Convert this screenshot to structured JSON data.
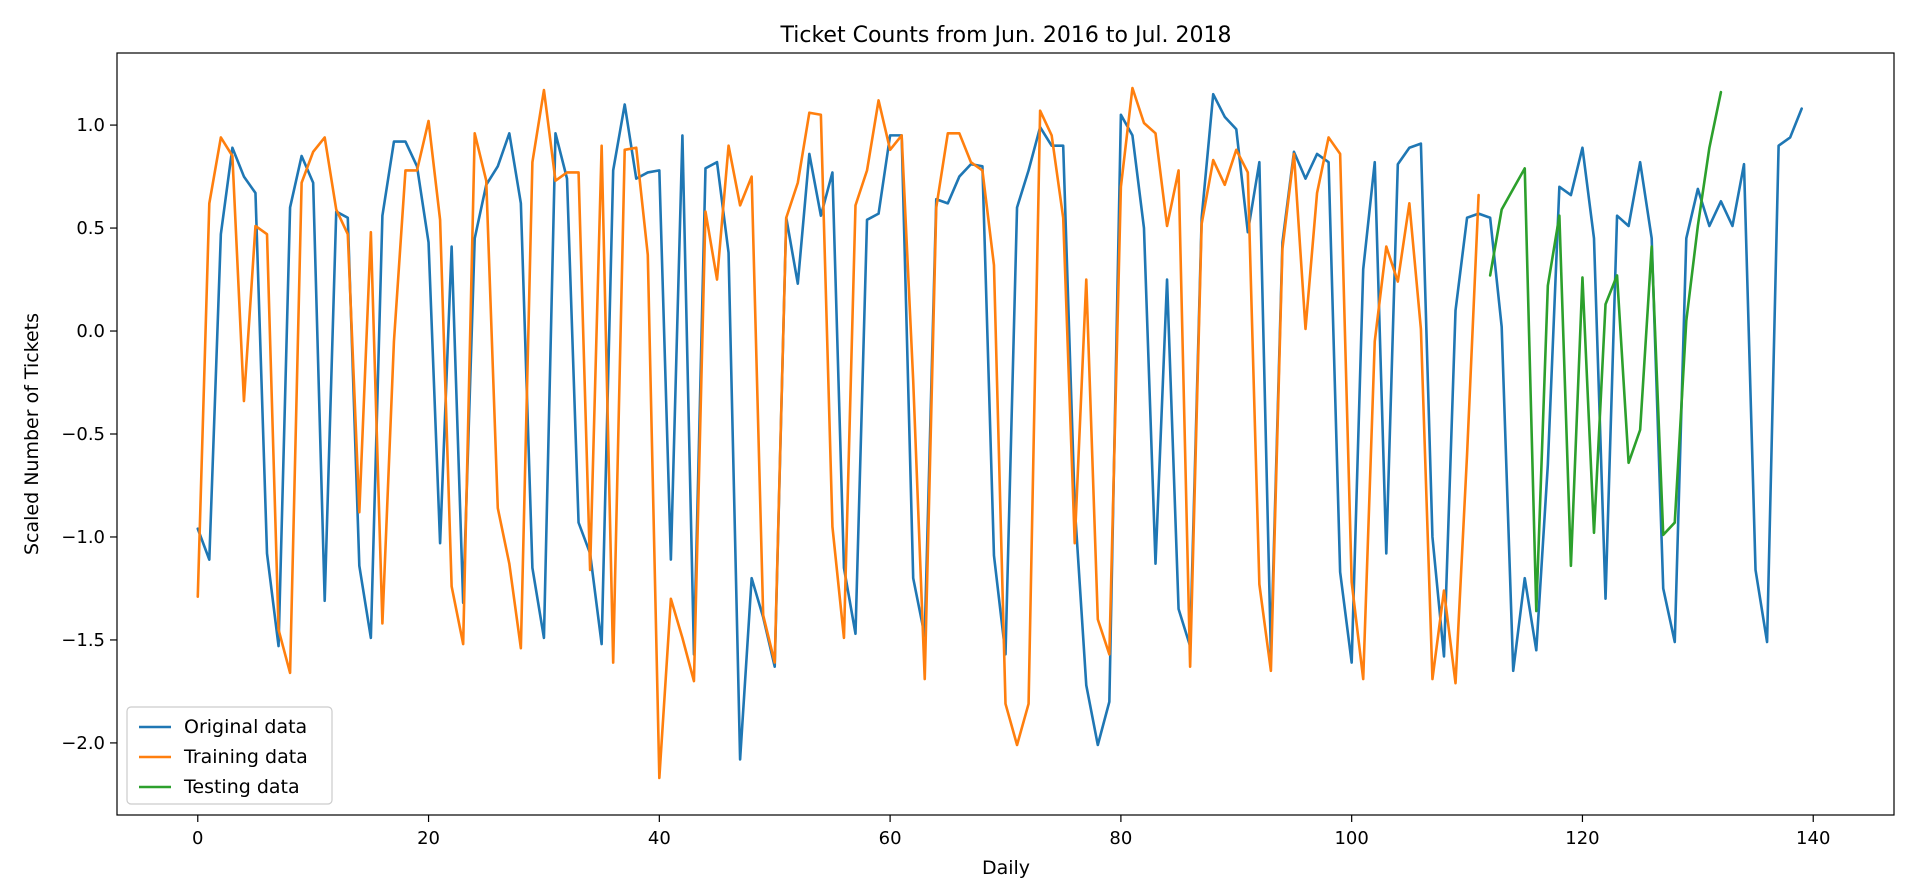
{
  "chart_data": {
    "type": "line",
    "title": "Ticket Counts from Jun. 2016 to Jul. 2018",
    "xlabel": "Daily",
    "ylabel": "Scaled Number of Tickets",
    "xlim": [
      -7,
      147
    ],
    "ylim": [
      -2.35,
      1.35
    ],
    "xticks": [
      0,
      20,
      40,
      60,
      80,
      100,
      120,
      140
    ],
    "yticks": [
      -2.0,
      -1.5,
      -1.0,
      -0.5,
      0.0,
      0.5,
      1.0
    ],
    "ytick_labels": [
      "−2.0",
      "−1.5",
      "−1.0",
      "−0.5",
      "0.0",
      "0.5",
      "1.0"
    ],
    "grid": false,
    "legend_position": "lower-left",
    "series": [
      {
        "name": "Original data",
        "color": "#1f77b4",
        "x_start": 0,
        "values": [
          -0.96,
          -1.11,
          0.47,
          0.89,
          0.75,
          0.67,
          -1.08,
          -1.53,
          0.6,
          0.85,
          0.72,
          -1.31,
          0.58,
          0.55,
          -1.14,
          -1.49,
          0.56,
          0.92,
          0.92,
          0.8,
          0.43,
          -1.03,
          0.41,
          -1.32,
          0.45,
          0.71,
          0.8,
          0.96,
          0.62,
          -1.15,
          -1.49,
          0.96,
          0.74,
          -0.93,
          -1.08,
          -1.52,
          0.78,
          1.1,
          0.74,
          0.77,
          0.78,
          -1.11,
          0.95,
          -1.57,
          0.79,
          0.82,
          0.38,
          -2.08,
          -1.2,
          -1.39,
          -1.63,
          0.55,
          0.23,
          0.86,
          0.56,
          0.77,
          -1.15,
          -1.47,
          0.54,
          0.57,
          0.95,
          0.95,
          -1.2,
          -1.48,
          0.64,
          0.62,
          0.75,
          0.81,
          0.8,
          -1.09,
          -1.57,
          0.6,
          0.78,
          0.99,
          0.9,
          0.9,
          -0.85,
          -1.72,
          -2.01,
          -1.8,
          1.05,
          0.95,
          0.5,
          -1.13,
          0.25,
          -1.35,
          -1.53,
          0.55,
          1.15,
          1.04,
          0.98,
          0.48,
          0.82,
          -1.57,
          0.43,
          0.87,
          0.74,
          0.86,
          0.82,
          -1.17,
          -1.61,
          0.3,
          0.82,
          -1.08,
          0.81,
          0.89,
          0.91,
          -1.0,
          -1.58,
          0.1,
          0.55,
          0.57,
          0.55,
          0.02,
          -1.65,
          -1.2,
          -1.55,
          -0.65,
          0.7,
          0.66,
          0.89,
          0.45,
          -1.3,
          0.56,
          0.51,
          0.82,
          0.45,
          -1.25,
          -1.51,
          0.45,
          0.69,
          0.51,
          0.63,
          0.51,
          0.81,
          -1.16,
          -1.51,
          0.9,
          0.94,
          1.08
        ]
      },
      {
        "name": "Training data",
        "color": "#ff7f0e",
        "x_start": 0,
        "values": [
          -1.29,
          0.62,
          0.94,
          0.85,
          -0.34,
          0.51,
          0.47,
          -1.45,
          -1.66,
          0.72,
          0.87,
          0.94,
          0.59,
          0.47,
          -0.88,
          0.48,
          -1.42,
          -0.05,
          0.78,
          0.78,
          1.02,
          0.54,
          -1.24,
          -1.52,
          0.96,
          0.73,
          -0.86,
          -1.13,
          -1.54,
          0.82,
          1.17,
          0.73,
          0.77,
          0.77,
          -1.16,
          0.9,
          -1.61,
          0.88,
          0.89,
          0.37,
          -2.17,
          -1.3,
          -1.49,
          -1.7,
          0.58,
          0.25,
          0.9,
          0.61,
          0.75,
          -1.38,
          -1.61,
          0.55,
          0.72,
          1.06,
          1.05,
          -0.95,
          -1.49,
          0.61,
          0.78,
          1.12,
          0.88,
          0.95,
          -0.24,
          -1.69,
          0.6,
          0.96,
          0.96,
          0.82,
          0.78,
          0.32,
          -1.81,
          -2.01,
          -1.81,
          1.07,
          0.95,
          0.55,
          -1.03,
          0.25,
          -1.4,
          -1.57,
          0.7,
          1.18,
          1.01,
          0.96,
          0.51,
          0.78,
          -1.63,
          0.52,
          0.83,
          0.71,
          0.88,
          0.77,
          -1.23,
          -1.65,
          0.4,
          0.86,
          0.01,
          0.67,
          0.94,
          0.86,
          -1.22,
          -1.69,
          -0.05,
          0.41,
          0.24,
          0.62,
          0.01,
          -1.69,
          -1.26,
          -1.71,
          -0.6,
          0.66
        ]
      },
      {
        "name": "Testing data",
        "color": "#2ca02c",
        "x_start": 112,
        "values": [
          0.27,
          0.59,
          0.69,
          0.79,
          -1.36,
          0.22,
          0.56,
          -1.14,
          0.26,
          -0.98,
          0.13,
          0.27,
          -0.64,
          -0.48,
          0.41,
          -0.99,
          -0.93,
          0.05,
          0.51,
          0.89,
          1.16
        ]
      }
    ]
  }
}
